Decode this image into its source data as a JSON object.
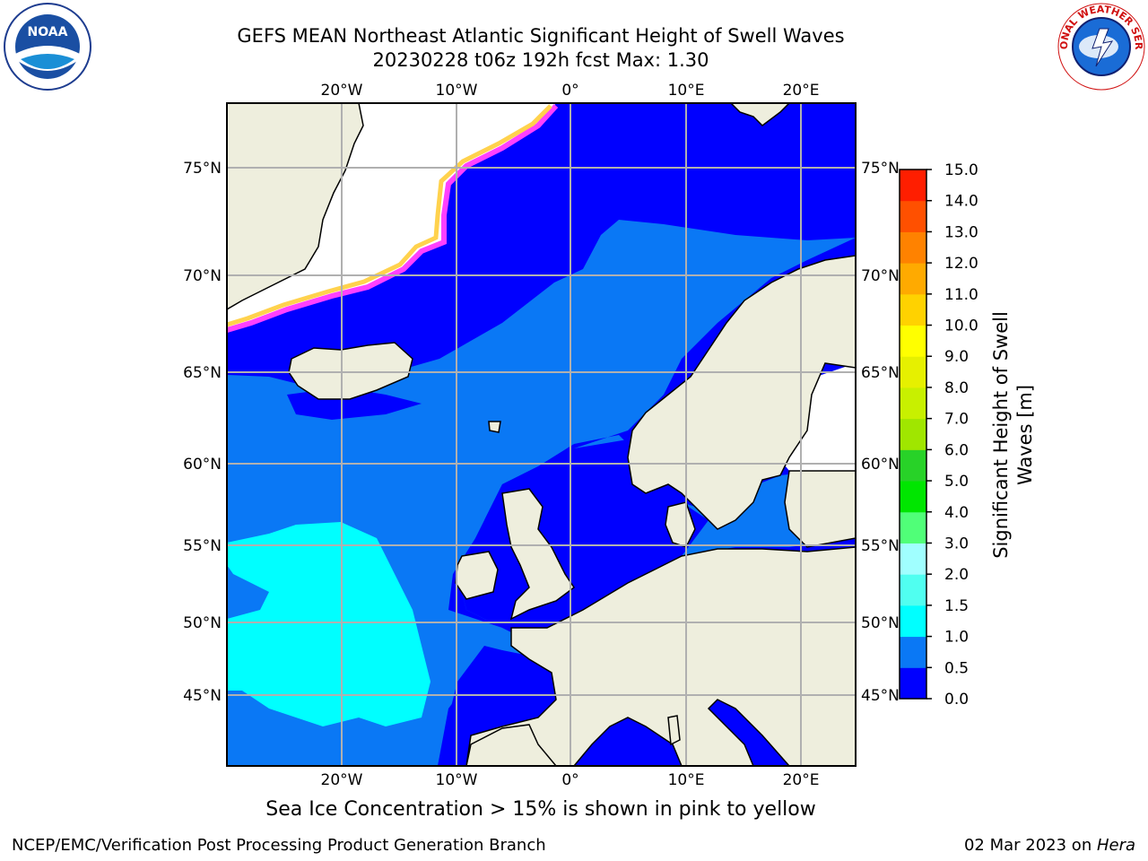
{
  "header": {
    "title_line1": "GEFS MEAN Northeast Atlantic Significant Height of Swell Waves",
    "title_line2": "20230228 t06z 192h fcst   Max: 1.30"
  },
  "logos": {
    "left": "NOAA",
    "right": "NATIONAL WEATHER SERVICE"
  },
  "map": {
    "lon_ticks_top": [
      "20°W",
      "10°W",
      "0°",
      "10°E",
      "20°E"
    ],
    "lon_ticks_bottom": [
      "20°W",
      "10°W",
      "0°",
      "10°E",
      "20°E"
    ],
    "lat_ticks_left": [
      "75°N",
      "70°N",
      "65°N",
      "60°N",
      "55°N",
      "50°N",
      "45°N"
    ],
    "lat_ticks_right": [
      "75°N",
      "70°N",
      "65°N",
      "60°N",
      "55°N",
      "50°N",
      "45°N"
    ],
    "colors": {
      "land": "#eeeedd",
      "ice": "#ffffff",
      "wave_0_0p5": "#0000ff",
      "wave_0p5_1": "#0a78f5",
      "wave_1_1p5": "#00ffff",
      "ice_edge_pink": "#ff40ff",
      "ice_edge_yellow": "#ffd24d"
    }
  },
  "colorbar": {
    "label": "Significant Height of Swell Waves [m]",
    "label_line1": "Significant Height of Swell",
    "label_line2": "Waves [m]",
    "ticks": [
      "0.0",
      "0.5",
      "1.0",
      "1.5",
      "2.0",
      "3.0",
      "4.0",
      "5.0",
      "6.0",
      "7.0",
      "8.0",
      "9.0",
      "10.0",
      "11.0",
      "12.0",
      "13.0",
      "14.0",
      "15.0"
    ],
    "colors": [
      "#0000ff",
      "#0a78f5",
      "#00ffff",
      "#50fff0",
      "#a0ffff",
      "#50ff78",
      "#00e600",
      "#28d228",
      "#a0e600",
      "#c8f000",
      "#e6f000",
      "#ffff00",
      "#ffd200",
      "#ffaa00",
      "#ff8200",
      "#ff5000",
      "#ff1e00"
    ]
  },
  "note": "Sea Ice Concentration > 15% is shown in pink to yellow",
  "footer": {
    "left": "NCEP/EMC/Verification Post Processing Product Generation Branch",
    "right_prefix": "02 Mar 2023 on ",
    "right_host": "Hera"
  }
}
